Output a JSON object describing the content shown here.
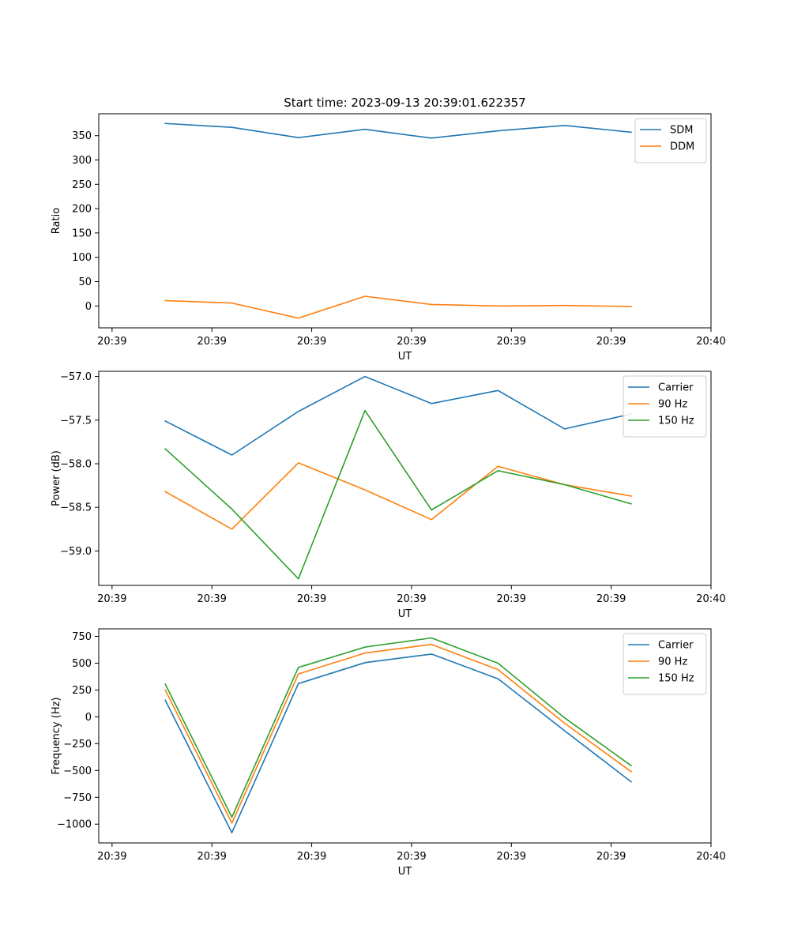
{
  "figure_title": "Start time: 2023-09-13 20:39:01.622357",
  "colors": {
    "blue": "#1f77b4",
    "orange": "#ff7f0e",
    "green": "#2ca02c"
  },
  "chart_data": [
    {
      "type": "line",
      "title": "Start time: 2023-09-13 20:39:01.622357",
      "xlabel": "UT",
      "ylabel": "Ratio",
      "xlim": [
        0,
        9.2
      ],
      "x_ticks": [
        0.2,
        1.7,
        3.2,
        4.7,
        6.2,
        7.7,
        9.2
      ],
      "x_tick_labels": [
        "20:39",
        "20:39",
        "20:39",
        "20:39",
        "20:39",
        "20:39",
        "20:40"
      ],
      "ylim": [
        -45,
        395
      ],
      "y_ticks": [
        0,
        50,
        100,
        150,
        200,
        250,
        300,
        350
      ],
      "y_tick_labels": [
        "0",
        "50",
        "100",
        "150",
        "200",
        "250",
        "300",
        "350"
      ],
      "x": [
        1,
        2,
        3,
        4,
        5,
        6,
        7,
        8
      ],
      "legend_position": "top-right",
      "series": [
        {
          "name": "SDM",
          "color": "#1f77b4",
          "values": [
            375,
            367,
            346,
            363,
            345,
            360,
            371,
            357
          ]
        },
        {
          "name": "DDM",
          "color": "#ff7f0e",
          "values": [
            11,
            6,
            -25,
            20,
            3,
            0,
            1,
            -1
          ]
        }
      ]
    },
    {
      "type": "line",
      "title": "",
      "xlabel": "UT",
      "ylabel": "Power (dB)",
      "xlim": [
        0,
        9.2
      ],
      "x_ticks": [
        0.2,
        1.7,
        3.2,
        4.7,
        6.2,
        7.7,
        9.2
      ],
      "x_tick_labels": [
        "20:39",
        "20:39",
        "20:39",
        "20:39",
        "20:39",
        "20:39",
        "20:40"
      ],
      "ylim": [
        -59.395,
        -56.94
      ],
      "y_ticks": [
        -59.0,
        -58.5,
        -58.0,
        -57.5,
        -57.0
      ],
      "y_tick_labels": [
        "−59.0",
        "−58.5",
        "−58.0",
        "−57.5",
        "−57.0"
      ],
      "x": [
        1,
        2,
        3,
        4,
        5,
        6,
        7,
        8
      ],
      "legend_position": "top-right",
      "series": [
        {
          "name": "Carrier",
          "color": "#1f77b4",
          "values": [
            -57.51,
            -57.9,
            -57.4,
            -57.0,
            -57.31,
            -57.16,
            -57.6,
            -57.43
          ]
        },
        {
          "name": "90 Hz",
          "color": "#ff7f0e",
          "values": [
            -58.32,
            -58.75,
            -57.99,
            -58.3,
            -58.64,
            -58.03,
            -58.24,
            -58.37
          ]
        },
        {
          "name": "150 Hz",
          "color": "#2ca02c",
          "values": [
            -57.83,
            -58.52,
            -59.32,
            -57.39,
            -58.53,
            -58.08,
            -58.24,
            -58.46
          ]
        }
      ]
    },
    {
      "type": "line",
      "title": "",
      "xlabel": "UT",
      "ylabel": "Frequency (Hz)",
      "xlim": [
        0,
        9.2
      ],
      "x_ticks": [
        0.2,
        1.7,
        3.2,
        4.7,
        6.2,
        7.7,
        9.2
      ],
      "x_tick_labels": [
        "20:39",
        "20:39",
        "20:39",
        "20:39",
        "20:39",
        "20:39",
        "20:40"
      ],
      "ylim": [
        -1175,
        820
      ],
      "y_ticks": [
        -1000,
        -750,
        -500,
        -250,
        0,
        250,
        500,
        750
      ],
      "y_tick_labels": [
        "−1000",
        "−750",
        "−500",
        "−250",
        "0",
        "250",
        "500",
        "750"
      ],
      "x": [
        1,
        2,
        3,
        4,
        5,
        6,
        7,
        8
      ],
      "legend_position": "top-right",
      "series": [
        {
          "name": "Carrier",
          "color": "#1f77b4",
          "values": [
            155,
            -1080,
            310,
            505,
            585,
            355,
            -130,
            -605
          ]
        },
        {
          "name": "90 Hz",
          "color": "#ff7f0e",
          "values": [
            250,
            -990,
            400,
            595,
            675,
            440,
            -60,
            -510
          ]
        },
        {
          "name": "150 Hz",
          "color": "#2ca02c",
          "values": [
            305,
            -935,
            460,
            650,
            735,
            500,
            -10,
            -455
          ]
        }
      ]
    }
  ]
}
